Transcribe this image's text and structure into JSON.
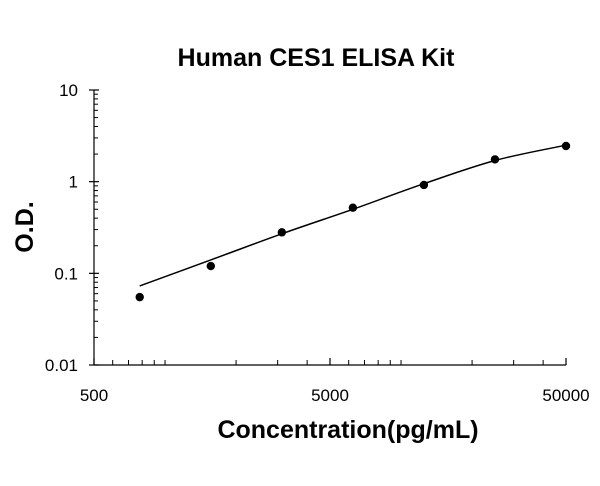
{
  "chart_data": {
    "type": "scatter",
    "title": "Human CES1 ELISA Kit",
    "xlabel": "Concentration(pg/mL)",
    "ylabel": "O.D.",
    "x_scale": "log",
    "y_scale": "log",
    "xlim": [
      500,
      50000
    ],
    "ylim": [
      0.01,
      10
    ],
    "x_ticks": [
      500,
      5000,
      50000
    ],
    "x_tick_labels": [
      "500",
      "5000",
      "50000"
    ],
    "y_ticks": [
      0.01,
      0.1,
      1,
      10
    ],
    "y_tick_labels": [
      "0.01",
      "0.1",
      "1",
      "10"
    ],
    "grid": false,
    "legend": false,
    "series": [
      {
        "points": [
          {
            "x": 781,
            "y": 0.055
          },
          {
            "x": 1563,
            "y": 0.12
          },
          {
            "x": 3125,
            "y": 0.28
          },
          {
            "x": 6250,
            "y": 0.52
          },
          {
            "x": 12500,
            "y": 0.92
          },
          {
            "x": 25000,
            "y": 1.75
          },
          {
            "x": 50000,
            "y": 2.45
          }
        ],
        "fit_curve": [
          {
            "x": 781,
            "y": 0.073
          },
          {
            "x": 1563,
            "y": 0.14
          },
          {
            "x": 3125,
            "y": 0.27
          },
          {
            "x": 6250,
            "y": 0.5
          },
          {
            "x": 12500,
            "y": 0.95
          },
          {
            "x": 25000,
            "y": 1.7
          },
          {
            "x": 50000,
            "y": 2.5
          }
        ],
        "color": "#000000"
      }
    ]
  }
}
